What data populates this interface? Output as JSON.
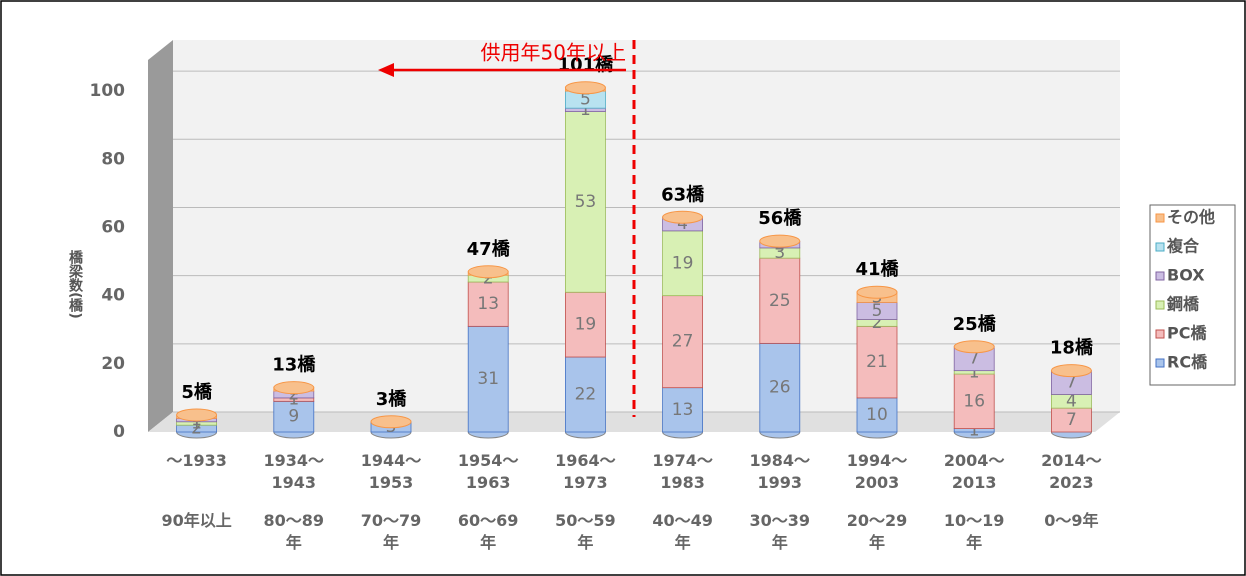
{
  "chart_data": {
    "type": "bar",
    "stacked": true,
    "y_label": "橋梁数(橋)",
    "categories": [
      "～1933",
      "1934～\n1943",
      "1944～\n1953",
      "1954～\n1963",
      "1964～\n1973",
      "1974～\n1983",
      "1984～\n1993",
      "1994～\n2003",
      "2004～\n2013",
      "2014～\n2023"
    ],
    "age_labels": [
      "90年以上",
      "80～89\n年",
      "70～79\n年",
      "60～69\n年",
      "50～59\n年",
      "40～49\n年",
      "30～39\n年",
      "20～29\n年",
      "10～19\n年",
      "0～9年"
    ],
    "series": [
      {
        "name": "RC橋",
        "color": "#a9c4eb",
        "stroke": "#4472c4",
        "values": [
          2,
          9,
          3,
          31,
          22,
          13,
          26,
          10,
          1,
          0
        ]
      },
      {
        "name": "PC橋",
        "color": "#f4bcbc",
        "stroke": "#c0504d",
        "values": [
          0,
          1,
          0,
          13,
          19,
          27,
          25,
          21,
          16,
          7
        ]
      },
      {
        "name": "鋼橋",
        "color": "#d8f0b4",
        "stroke": "#9bbb59",
        "values": [
          1,
          0,
          0,
          2,
          53,
          19,
          3,
          2,
          1,
          4
        ]
      },
      {
        "name": "BOX",
        "color": "#cbbde2",
        "stroke": "#8064a2",
        "values": [
          1,
          2,
          0,
          0,
          1,
          4,
          2,
          5,
          7,
          7
        ]
      },
      {
        "name": "複合",
        "color": "#b8e2f0",
        "stroke": "#4bacc6",
        "values": [
          0,
          0,
          0,
          0,
          5,
          0,
          0,
          0,
          0,
          0
        ]
      },
      {
        "name": "その他",
        "color": "#f8c08c",
        "stroke": "#f79646",
        "values": [
          1,
          1,
          0,
          1,
          1,
          0,
          0,
          3,
          0,
          0
        ]
      }
    ],
    "totals": [
      5,
      13,
      3,
      47,
      101,
      63,
      56,
      41,
      25,
      18
    ],
    "total_labels": [
      "5橋",
      "13橋",
      "3橋",
      "47橋",
      "101橋",
      "63橋",
      "56橋",
      "41橋",
      "25橋",
      "18橋"
    ],
    "annotation": "供用年50年以上",
    "ylim": [
      0,
      115
    ],
    "yticks": [
      0,
      20,
      40,
      60,
      80,
      100
    ],
    "grid": true,
    "legend": "right"
  }
}
